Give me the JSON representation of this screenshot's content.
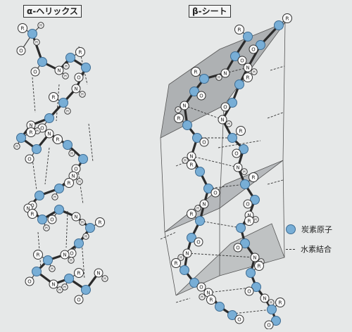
{
  "alpha_helix": {
    "title": "α-ヘリックス"
  },
  "beta_sheet": {
    "title": "β-シート"
  },
  "legend": {
    "carbon_label": "炭素原子",
    "hbond_label": "水素結合"
  },
  "atom_labels": {
    "oxygen": "O",
    "nitrogen": "N",
    "hydrogen": "H",
    "side_chain": "R"
  },
  "colors": {
    "carbon": "#78aed6",
    "carbon_stroke": "#3d6c93",
    "sheet": "#8e9295",
    "background": "#e6e8e8"
  }
}
